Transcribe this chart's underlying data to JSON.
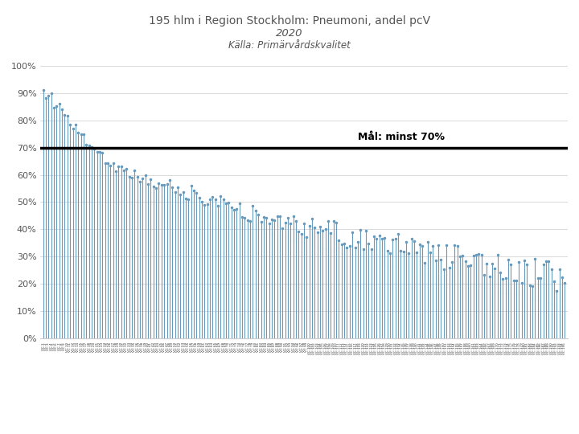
{
  "title_line1": "195 hlm i Region Stockholm: Pneumoni, andel pcV",
  "title_line2": "2020",
  "title_line3": "Källa: Primärvårdskvalitet",
  "n_bars": 195,
  "target_line": 0.7,
  "target_label": "Mål: minst 70%",
  "yticks": [
    0,
    0.1,
    0.2,
    0.3,
    0.4,
    0.5,
    0.6,
    0.7,
    0.8,
    0.9,
    1.0
  ],
  "ytick_labels": [
    "0%",
    "10%",
    "20%",
    "30%",
    "40%",
    "50%",
    "60%",
    "70%",
    "80%",
    "90%",
    "100%"
  ],
  "bar_color": "#6699bb",
  "target_line_color": "#000000",
  "grid_color": "#cccccc",
  "title_color": "#555555",
  "background_color": "#ffffff"
}
